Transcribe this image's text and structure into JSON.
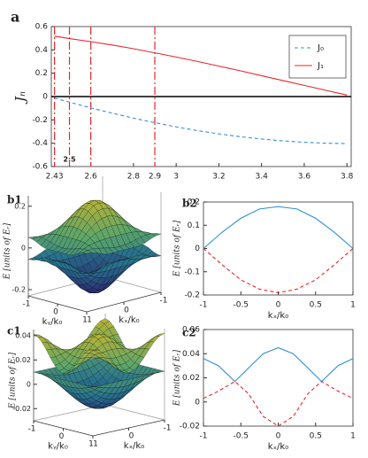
{
  "chart_data": [
    {
      "type": "line",
      "label": "a",
      "ylabel": "Jₙ",
      "x": [
        2.43,
        2.5,
        2.6,
        2.7,
        2.8,
        2.9,
        3.0,
        3.1,
        3.2,
        3.3,
        3.4,
        3.5,
        3.6,
        3.7,
        3.8
      ],
      "xlim": [
        2.415,
        3.82
      ],
      "ylim": [
        -0.6,
        0.6
      ],
      "xticks": [
        2.43,
        2.5,
        2.6,
        2.8,
        2.9,
        3,
        3.2,
        3.4,
        3.6,
        3.8
      ],
      "yticks": [
        0.6,
        0.4,
        0.2,
        0,
        -0.2,
        -0.4,
        -0.6
      ],
      "vlines": [
        2.43,
        2.5,
        2.6,
        2.9
      ],
      "vline_color": "#e8262a",
      "zero_line_color": "#000000",
      "legend": "upper right",
      "series": [
        {
          "name": "J₀",
          "color": "#3a8fd0",
          "dash": true,
          "values": [
            -0.013,
            -0.048,
            -0.097,
            -0.142,
            -0.185,
            -0.224,
            -0.26,
            -0.292,
            -0.32,
            -0.344,
            -0.364,
            -0.38,
            -0.392,
            -0.4,
            -0.403
          ]
        },
        {
          "name": "J₁",
          "color": "#e8262a",
          "dash": false,
          "values": [
            0.518,
            0.497,
            0.471,
            0.442,
            0.41,
            0.375,
            0.339,
            0.301,
            0.261,
            0.221,
            0.179,
            0.137,
            0.096,
            0.054,
            0.013
          ]
        }
      ]
    },
    {
      "type": "surface",
      "label": "b1",
      "zlabel": "E [units of Eᵣ]",
      "xlabel": "kₓ/k₀",
      "ylabel": "kᵧ/k₀",
      "zlim": [
        -0.23,
        0.25
      ],
      "zticks": [
        -0.2,
        0,
        0.2
      ],
      "xlim": [
        -1,
        1
      ],
      "ylim": [
        -1,
        1
      ],
      "xticks": [
        1,
        0,
        -1
      ],
      "yticks": [
        -1,
        0,
        1
      ]
    },
    {
      "type": "line",
      "label": "b2",
      "ylabel": "E [units of Eᵣ]",
      "xlabel": "kₓ/k₀",
      "x": [
        -1,
        -0.75,
        -0.5,
        -0.25,
        0,
        0.25,
        0.5,
        0.75,
        1
      ],
      "xlim": [
        -1,
        1
      ],
      "ylim": [
        -0.2,
        0.2
      ],
      "xticks": [
        -1,
        -0.5,
        0,
        0.5,
        1
      ],
      "yticks": [
        0.2,
        0.1,
        0,
        -0.1,
        -0.2
      ],
      "series": [
        {
          "color": "#2e8fd6",
          "dash": false,
          "values": [
            0,
            0.07,
            0.13,
            0.17,
            0.18,
            0.17,
            0.13,
            0.07,
            0
          ]
        },
        {
          "color": "#e8262a",
          "dash": true,
          "values": [
            0,
            -0.07,
            -0.135,
            -0.175,
            -0.19,
            -0.175,
            -0.135,
            -0.07,
            0
          ]
        }
      ]
    },
    {
      "type": "surface",
      "label": "c1",
      "zlabel": "E [units of Eᵣ]",
      "xlabel": "kₓ/k₀",
      "ylabel": "kᵧ/k₀",
      "zlim": [
        -0.03,
        0.045
      ],
      "zticks": [
        -0.02,
        0,
        0.02,
        0.04
      ],
      "xlim": [
        -1,
        1
      ],
      "ylim": [
        -1,
        1
      ],
      "xticks": [
        1,
        0,
        -1
      ],
      "yticks": [
        -1,
        0,
        1
      ]
    },
    {
      "type": "line",
      "label": "c2",
      "ylabel": "E [units of Eᵣ]",
      "xlabel": "kₓ/k₀",
      "x": [
        -1,
        -0.8,
        -0.58,
        -0.4,
        -0.2,
        0,
        0.2,
        0.4,
        0.58,
        0.8,
        1
      ],
      "xlim": [
        -1,
        1
      ],
      "ylim": [
        -0.02,
        0.06
      ],
      "xticks": [
        -1,
        -0.5,
        0,
        0.5,
        1
      ],
      "yticks": [
        0.06,
        0.04,
        0.02,
        0,
        -0.02
      ],
      "series": [
        {
          "color": "#2e8fd6",
          "dash": false,
          "values": [
            0.036,
            0.03,
            0.017,
            0.028,
            0.04,
            0.045,
            0.04,
            0.028,
            0.017,
            0.03,
            0.036
          ]
        },
        {
          "color": "#e8262a",
          "dash": true,
          "values": [
            0.003,
            0.009,
            0.017,
            0.007,
            -0.012,
            -0.02,
            -0.012,
            0.007,
            0.017,
            0.009,
            0.003
          ]
        }
      ]
    }
  ]
}
